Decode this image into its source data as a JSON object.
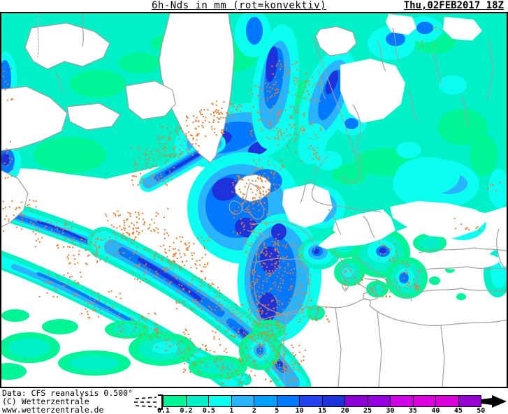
{
  "header": {
    "title": "6h-Nds in mm (rot=konvektiv)",
    "datetime": "Thu,02FEB2017 18Z"
  },
  "footer": {
    "data_line": "Data: CFS reanalysis 0.500°",
    "copyright_line": "(C) Wetterzentrale",
    "website_line": "www.wetterzentrale.de"
  },
  "legend": {
    "labels": [
      "0.1",
      "0.2",
      "0.5",
      "1",
      "2",
      "5",
      "10",
      "15",
      "20",
      "25",
      "30",
      "35",
      "40",
      "45",
      "50"
    ],
    "colors": [
      "#00F596",
      "#00F0C8",
      "#0AFFF0",
      "#28B4FF",
      "#00A0FF",
      "#0078FF",
      "#2342F5",
      "#1E32DC",
      "#8C00D7",
      "#9600E1",
      "#D200E6",
      "#DC00E1",
      "#DC00DC",
      "#9600D2"
    ],
    "box_border_color": "#000000",
    "arrow_color": "#000000",
    "sub_threshold_symbol": "dashed-lines"
  },
  "map": {
    "background_color": "#FFFFFF",
    "coastline_color": "#A0A0A0",
    "convective_dot_color": "#EE7A28",
    "frame_color": "#000000"
  }
}
